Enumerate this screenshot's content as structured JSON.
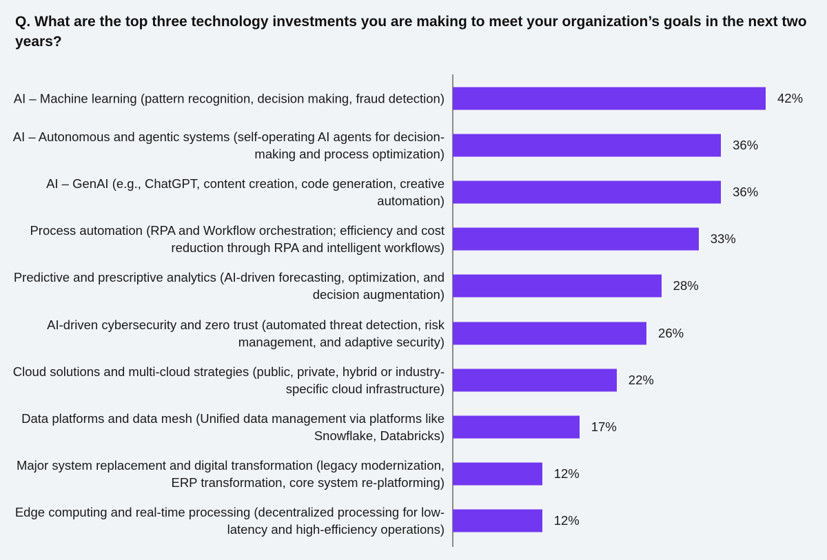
{
  "title": "Q. What are the top three technology investments you are making to meet your organization’s goals in the next two years?",
  "colors": {
    "bar": "#7237f0",
    "axis": "#8a8a8a",
    "background": "#f1f4f7"
  },
  "chart_data": {
    "type": "bar",
    "orientation": "horizontal",
    "title": "Q. What are the top three technology investments you are making to meet your organization’s goals in the next two years?",
    "unit": "%",
    "categories": [
      "AI  – Machine learning (pattern recognition, decision making, fraud detection)",
      "AI – Autonomous and agentic systems (self-operating AI agents for decision-making and process optimization)",
      "AI – GenAI (e.g., ChatGPT, content creation, code generation, creative automation)",
      "Process automation (RPA and Workflow orchestration; efficiency and cost reduction through RPA and intelligent workflows)",
      "Predictive and prescriptive analytics (AI-driven forecasting, optimization, and decision augmentation)",
      "AI-driven cybersecurity and zero trust (automated threat detection, risk management, and adaptive security)",
      "Cloud solutions and multi-cloud strategies (public, private, hybrid or industry-specific cloud infrastructure)",
      "Data platforms and data mesh (Unified data management via platforms like Snowflake, Databricks)",
      "Major system replacement and digital transformation (legacy modernization, ERP transformation, core system re-platforming)",
      "Edge computing and real-time processing (decentralized processing for low-latency and high-efficiency operations)"
    ],
    "values": [
      42,
      36,
      36,
      33,
      28,
      26,
      22,
      17,
      12,
      12
    ],
    "value_labels": [
      "42%",
      "36%",
      "36%",
      "33%",
      "28%",
      "26%",
      "22%",
      "17%",
      "12%",
      "12%"
    ],
    "xlim": [
      0,
      42
    ],
    "grid": false,
    "legend": "none",
    "data_labels": "outside-end"
  }
}
